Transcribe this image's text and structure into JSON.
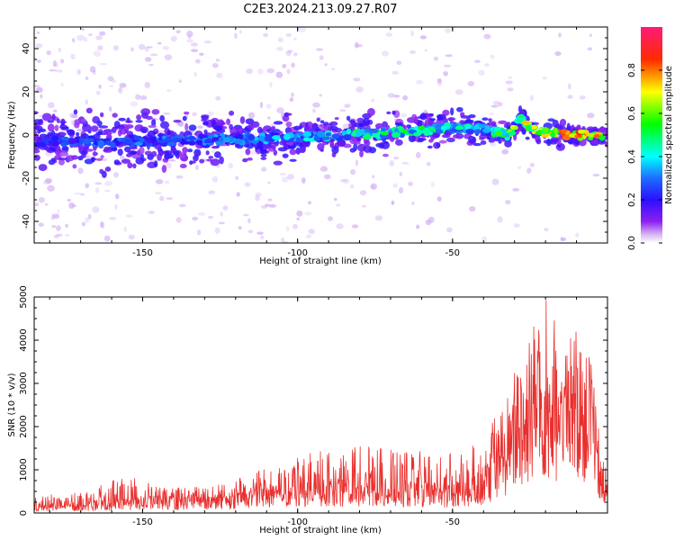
{
  "title": "C2E3.2024.213.09.27.R07",
  "chart_data": [
    {
      "type": "heatmap",
      "panel": "spectrogram",
      "xlabel": "Height of straight line (km)",
      "ylabel": "Frequency (Hz)",
      "xlim": [
        -185,
        0
      ],
      "ylim": [
        -50,
        50
      ],
      "xticks": [
        -150,
        -100,
        -50
      ],
      "yticks": [
        -40,
        -20,
        0,
        20,
        40
      ],
      "colorbar": {
        "label": "Normalized spectral amplitude",
        "range": [
          0.0,
          1.0
        ],
        "ticks": [
          0.0,
          0.2,
          0.4,
          0.6,
          0.8
        ]
      },
      "ridge": {
        "description_points_x": [
          -185,
          -150,
          -100,
          -70,
          -50,
          -40,
          -32,
          -28,
          -25,
          -20,
          -10,
          -2
        ],
        "frequency_hz": [
          -3,
          -3,
          -1,
          1,
          3,
          3,
          0,
          8,
          3,
          1,
          0,
          0
        ],
        "amplitude": [
          0.25,
          0.3,
          0.35,
          0.5,
          0.45,
          0.4,
          0.6,
          0.65,
          0.7,
          0.8,
          0.85,
          0.7
        ]
      }
    },
    {
      "type": "line",
      "panel": "snr",
      "xlabel": "Height of straight line (km)",
      "ylabel": "SNR (10 * v/v)",
      "xlim": [
        -185,
        0
      ],
      "ylim": [
        0,
        5000
      ],
      "xticks": [
        -150,
        -100,
        -50
      ],
      "yticks": [
        0,
        1000,
        2000,
        3000,
        4000,
        5000
      ],
      "series": [
        {
          "color": "#e8302e",
          "x": [
            -185,
            -175,
            -165,
            -155,
            -145,
            -135,
            -125,
            -115,
            -105,
            -95,
            -85,
            -75,
            -65,
            -55,
            -45,
            -40,
            -35,
            -30,
            -25,
            -20,
            -15,
            -10,
            -5,
            -2,
            0
          ],
          "base": [
            150,
            180,
            220,
            280,
            300,
            300,
            320,
            400,
            500,
            560,
            600,
            600,
            560,
            520,
            560,
            800,
            1200,
            2000,
            2400,
            3000,
            2200,
            2800,
            2600,
            400,
            1000
          ],
          "peak": [
            450,
            400,
            600,
            900,
            600,
            600,
            650,
            900,
            1200,
            1400,
            1500,
            1600,
            1450,
            1400,
            1500,
            1700,
            2400,
            3700,
            4200,
            5000,
            4100,
            4200,
            3500,
            1400,
            1300
          ]
        }
      ]
    }
  ]
}
